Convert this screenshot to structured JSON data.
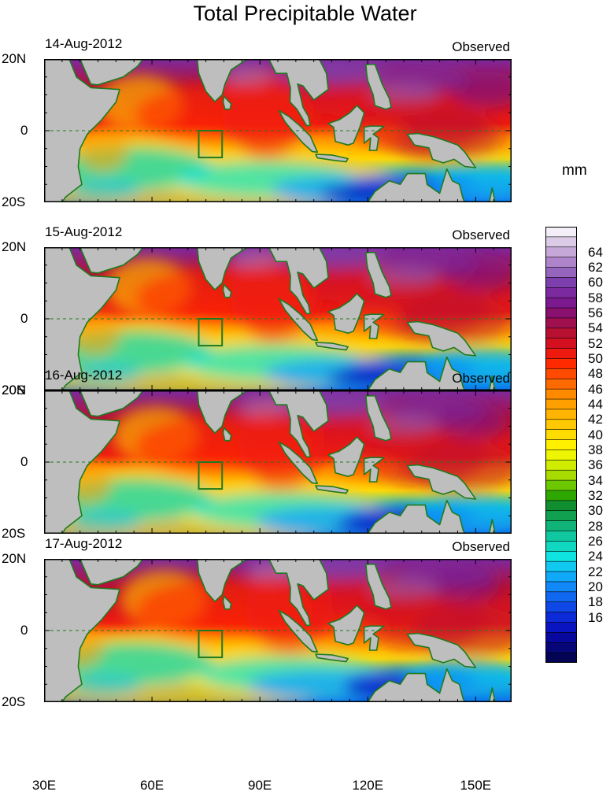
{
  "chart_data": {
    "type": "heatmap",
    "title": "Total Precipitable Water",
    "units": "mm",
    "x_range_deg_e": [
      30,
      160
    ],
    "y_range_deg_n": [
      -20,
      20
    ],
    "x_ticks": [
      "30E",
      "60E",
      "90E",
      "120E",
      "150E"
    ],
    "y_ticks": [
      "20N",
      "0",
      "20S"
    ],
    "panels": [
      {
        "date": "14-Aug-2012",
        "label": "Observed",
        "box_lon": [
          73,
          79.5
        ],
        "box_lat": [
          -7.5,
          0
        ]
      },
      {
        "date": "15-Aug-2012",
        "label": "Observed",
        "box_lon": [
          73,
          79.5
        ],
        "box_lat": [
          -7.5,
          0
        ]
      },
      {
        "date": "16-Aug-2012",
        "label": "Observed",
        "box_lon": [
          73,
          79.5
        ],
        "box_lat": [
          -7.5,
          0
        ]
      },
      {
        "date": "17-Aug-2012",
        "label": "Observed",
        "box_lon": [
          73,
          79.5
        ],
        "box_lat": [
          -7.5,
          0
        ]
      }
    ],
    "colorbar": {
      "labels": [
        "64",
        "62",
        "60",
        "58",
        "56",
        "54",
        "52",
        "50",
        "48",
        "46",
        "44",
        "42",
        "40",
        "38",
        "36",
        "34",
        "32",
        "30",
        "28",
        "26",
        "24",
        "22",
        "20",
        "18",
        "16"
      ],
      "colors": [
        "#f4eef8",
        "#dccbe6",
        "#c5a8d8",
        "#ae85cb",
        "#9565bd",
        "#7e3fae",
        "#7c2aa0",
        "#7a1a8e",
        "#8a1070",
        "#a0104e",
        "#b81030",
        "#d41020",
        "#ee1a10",
        "#ff2a00",
        "#ff4a00",
        "#ff6a00",
        "#ff8a00",
        "#ffa000",
        "#ffb400",
        "#ffc800",
        "#ffdc00",
        "#fff000",
        "#eef500",
        "#d0ec00",
        "#a8dc00",
        "#6cc800",
        "#2ea800",
        "#108e30",
        "#10a050",
        "#10b478",
        "#10c8a0",
        "#10d8c0",
        "#10e4e0",
        "#10c8f0",
        "#10a8f8",
        "#1088f8",
        "#1068f0",
        "#1048e8",
        "#0c2ad8",
        "#0a14c0",
        "#08089e",
        "#060678",
        "#040454"
      ]
    }
  }
}
